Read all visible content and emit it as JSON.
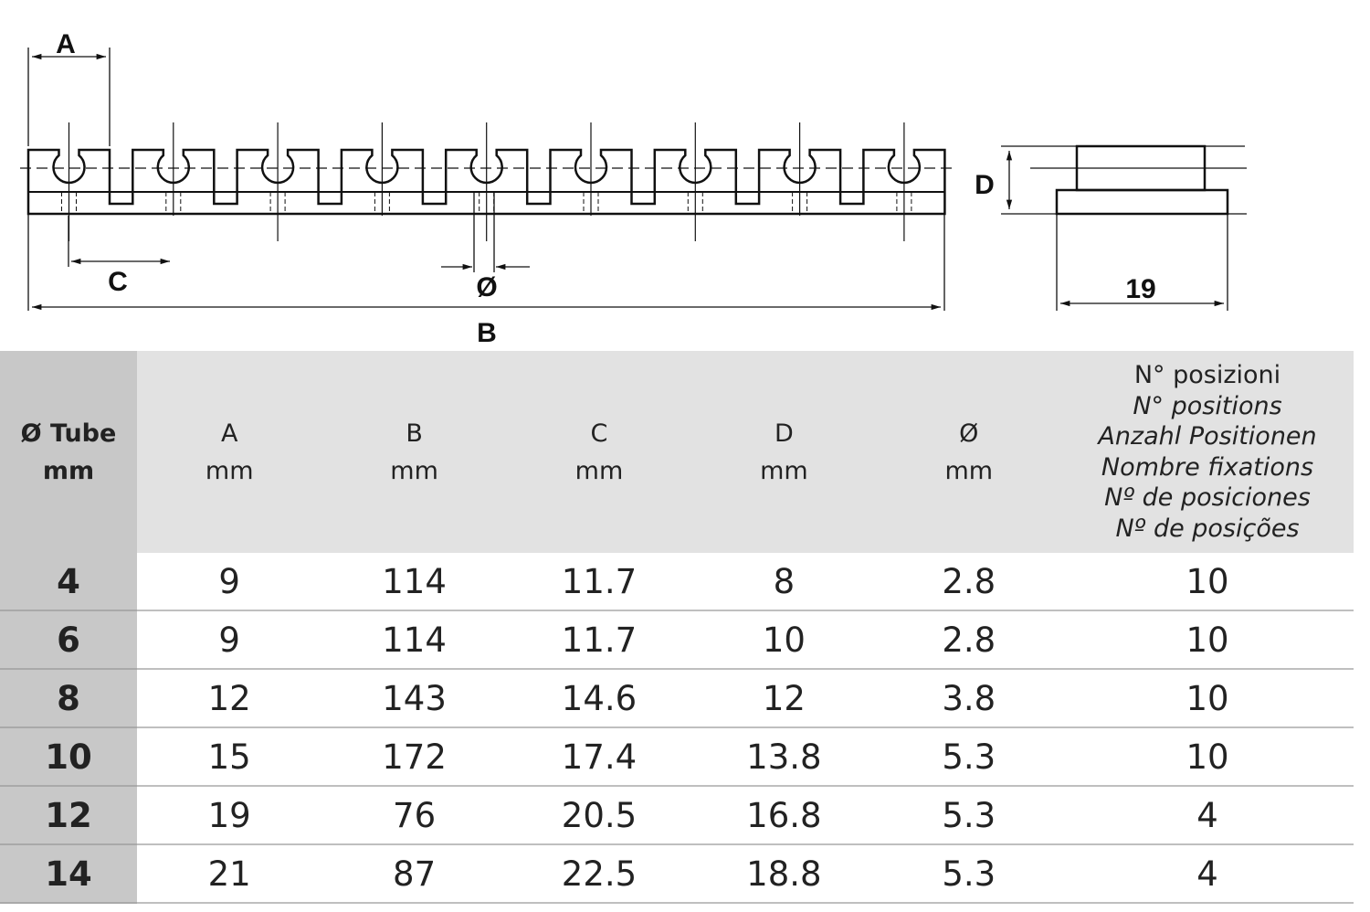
{
  "drawing": {
    "labels": {
      "A": "A",
      "B": "B",
      "C": "C",
      "D": "D",
      "dia": "Ø",
      "width": "19"
    },
    "positions_shown": 9
  },
  "table": {
    "headers": [
      {
        "line1": "Ø Tube",
        "line2": "mm"
      },
      {
        "line1": "A",
        "line2": "mm"
      },
      {
        "line1": "B",
        "line2": "mm"
      },
      {
        "line1": "C",
        "line2": "mm"
      },
      {
        "line1": "D",
        "line2": "mm"
      },
      {
        "line1": "Ø",
        "line2": "mm"
      }
    ],
    "positions_header": [
      "N° posizioni",
      "N° positions",
      "Anzahl Positionen",
      "Nombre fixations",
      "Nº de posiciones",
      "Nº de posições"
    ],
    "rows": [
      [
        "4",
        "9",
        "114",
        "11.7",
        "8",
        "2.8",
        "10"
      ],
      [
        "6",
        "9",
        "114",
        "11.7",
        "10",
        "2.8",
        "10"
      ],
      [
        "8",
        "12",
        "143",
        "14.6",
        "12",
        "3.8",
        "10"
      ],
      [
        "10",
        "15",
        "172",
        "17.4",
        "13.8",
        "5.3",
        "10"
      ],
      [
        "12",
        "19",
        "76",
        "20.5",
        "16.8",
        "5.3",
        "4"
      ],
      [
        "14",
        "21",
        "87",
        "22.5",
        "18.8",
        "5.3",
        "4"
      ]
    ]
  }
}
